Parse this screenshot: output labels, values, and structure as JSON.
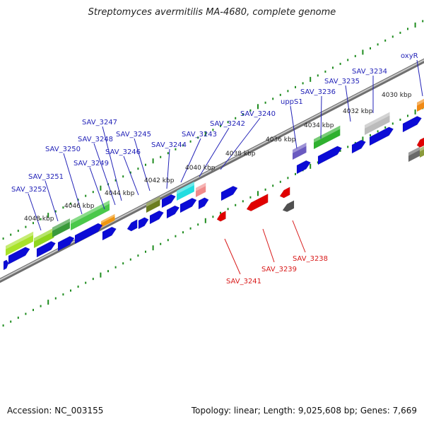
{
  "title": "Streptomyces avermitilis MA-4680, complete genome",
  "footer": {
    "accession": "Accession: NC_003155",
    "summary": "Topology: linear; Length: 9,025,608 bp; Genes: 7,669"
  },
  "scale_labels": [
    "4048 kbp",
    "4046 kbp",
    "4044 kbp",
    "4042 kbp",
    "4040 kbp",
    "4038 kbp",
    "4036 kbp",
    "4034 kbp",
    "4032 kbp",
    "4030 kbp"
  ],
  "forward_gene_labels": [
    "SAV_3252",
    "SAV_3251",
    "SAV_3250",
    "SAV_3249",
    "SAV_3248",
    "SAV_3247",
    "SAV_3246",
    "SAV_3245",
    "SAV_3244",
    "SAV_3243",
    "SAV_3242",
    "SAV_3240",
    "uppS1",
    "SAV_3236",
    "SAV_3235",
    "SAV_3234",
    "oxyR"
  ],
  "reverse_gene_labels": [
    "SAV_3241",
    "SAV_3239",
    "SAV_3238"
  ],
  "colors": {
    "forward_label": "#2323b8",
    "reverse_label": "#d81818",
    "gene_blue": "#0b0bd6",
    "gene_red": "#e00000",
    "tick_green": "#1e8c1e",
    "backbone": "#9a9a9a"
  }
}
